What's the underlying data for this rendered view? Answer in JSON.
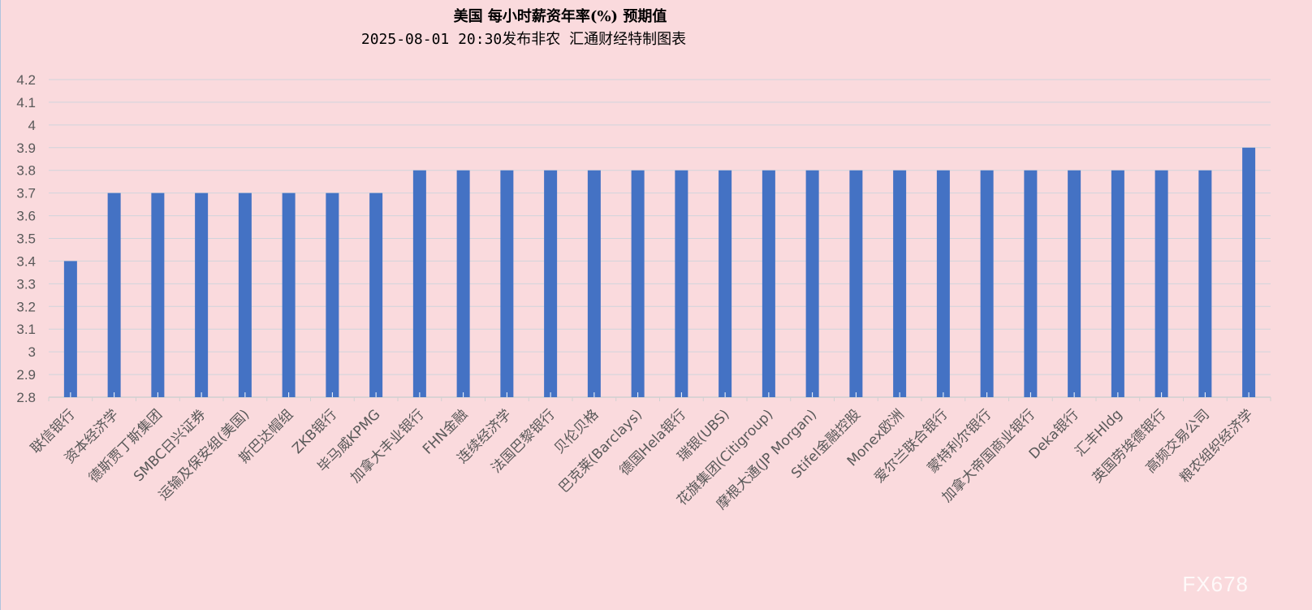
{
  "chart_data": {
    "type": "bar",
    "title": "美国  每小时薪资年率(%) 预期值",
    "subtitle": "2025-08-01 20:30发布非农 汇通财经特制图表",
    "categories": [
      "联信银行",
      "资本经济学",
      "德斯贾丁斯集团",
      "SMBC日兴证券",
      "运输及保安组(美国)",
      "斯巴达帽组",
      "ZKB银行",
      "毕马威KPMG",
      "加拿大丰业银行",
      "FHN金融",
      "连续经济学",
      "法国巴黎银行",
      "贝伦贝格",
      "巴克莱(Barclays)",
      "德国Hela银行",
      "瑞银(UBS)",
      "花旗集团(Citigroup)",
      "摩根大通(JP Morgan)",
      "Stifel金融控股",
      "Monex欧洲",
      "爱尔兰联合银行",
      "蒙特利尔银行",
      "加拿大帝国商业银行",
      "Deka银行",
      "汇丰Hldg",
      "英国劳埃德银行",
      "高频交易公司",
      "粮农组织经济学"
    ],
    "values": [
      3.4,
      3.7,
      3.7,
      3.7,
      3.7,
      3.7,
      3.7,
      3.7,
      3.8,
      3.8,
      3.8,
      3.8,
      3.8,
      3.8,
      3.8,
      3.8,
      3.8,
      3.8,
      3.8,
      3.8,
      3.8,
      3.8,
      3.8,
      3.8,
      3.8,
      3.8,
      3.8,
      3.9
    ],
    "ylim": [
      2.8,
      4.2
    ],
    "yticks": [
      "2.8",
      "2.9",
      "3",
      "3.1",
      "3.2",
      "3.3",
      "3.4",
      "3.5",
      "3.6",
      "3.7",
      "3.8",
      "3.9",
      "4",
      "4.1",
      "4.2"
    ],
    "grid": true,
    "bar_color": "#4472c4",
    "background": "#fadadd"
  },
  "watermark": "FX678"
}
